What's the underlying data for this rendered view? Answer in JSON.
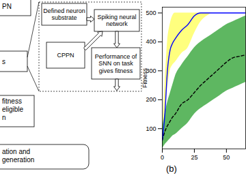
{
  "diagram": {
    "nodes": [
      {
        "label": [
          "PN"
        ]
      },
      {
        "label": [
          "s"
        ]
      },
      {
        "label": [
          "fitness",
          "eligible",
          "n"
        ]
      },
      {
        "label": [
          "ation and",
          "generation"
        ]
      }
    ],
    "inset_nodes": [
      {
        "label": [
          "Defined neuron",
          "substrate"
        ]
      },
      {
        "label": [
          "Spiking neural",
          "network"
        ]
      },
      {
        "label": [
          "CPPN"
        ]
      },
      {
        "label": [
          "Performance of",
          "SNN on task",
          "gives fitness"
        ]
      }
    ]
  },
  "panel_labels": [
    "(b)"
  ],
  "chart_data": {
    "type": "line",
    "y_label": "Fitness",
    "x": [
      0,
      2,
      4,
      6,
      8,
      10,
      15,
      20,
      25,
      30,
      35,
      40,
      45,
      50,
      55,
      60,
      65
    ],
    "xlim": [
      0,
      65
    ],
    "xticks": [
      0,
      25,
      50
    ],
    "ylim": [
      30,
      520
    ],
    "yticks": [
      100,
      200,
      300,
      400,
      500
    ],
    "grid": false,
    "bands": [
      {
        "color": "#ffff70",
        "lower": [
          60,
          150,
          240,
          300,
          320,
          330,
          360,
          380,
          430,
          470,
          490,
          500,
          500,
          500,
          500,
          500,
          500
        ],
        "upper": [
          70,
          250,
          400,
          460,
          490,
          500,
          500,
          500,
          500,
          500,
          500,
          500,
          500,
          500,
          500,
          500,
          500
        ]
      },
      {
        "color": "#4caf50",
        "lower": [
          30,
          45,
          55,
          65,
          75,
          80,
          100,
          120,
          150,
          170,
          185,
          200,
          215,
          230,
          240,
          250,
          260
        ],
        "upper": [
          100,
          150,
          190,
          220,
          250,
          280,
          320,
          350,
          380,
          400,
          415,
          430,
          445,
          460,
          470,
          480,
          490
        ]
      }
    ],
    "series": [
      {
        "color": "#000000",
        "line_style": "dashed",
        "values": [
          60,
          90,
          110,
          125,
          140,
          150,
          185,
          200,
          225,
          250,
          270,
          290,
          310,
          330,
          345,
          350,
          355
        ]
      },
      {
        "color": "#0000ff",
        "line_style": "solid",
        "values": [
          60,
          150,
          300,
          370,
          395,
          410,
          440,
          460,
          490,
          500,
          500,
          500,
          500,
          500,
          500,
          500,
          500
        ]
      }
    ]
  }
}
